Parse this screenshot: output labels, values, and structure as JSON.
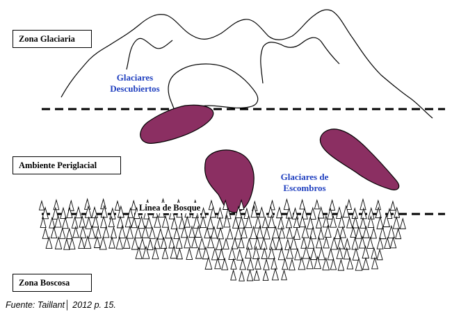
{
  "zones": {
    "glacial": "Zona Glaciaria",
    "periglacial": "Ambiente Periglacial",
    "forest": "Zona Boscosa"
  },
  "labels": {
    "uncovered_glaciers_line1": "Glaciares",
    "uncovered_glaciers_line2": "Descubiertos",
    "rock_glaciers_line1": "Glaciares de",
    "rock_glaciers_line2": "Escombros",
    "tree_line": "Linea de Bosque"
  },
  "caption": "Fuente: Taillant│ 2012 p. 15.",
  "colors": {
    "rock_glacier_fill": "#8b2f62",
    "label_blue": "#1f3fbf",
    "line": "#000000"
  }
}
